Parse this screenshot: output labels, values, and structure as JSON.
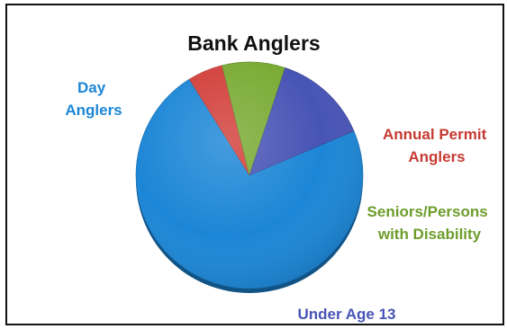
{
  "chart_data": {
    "type": "pie",
    "title": "Bank Anglers",
    "slices": [
      {
        "label": "Day Anglers",
        "value": 72.5,
        "color": "#1c86d6"
      },
      {
        "label": "Annual Permit Anglers",
        "value": 5,
        "color": "#d23f3a"
      },
      {
        "label": "Seniors/Persons with Disability",
        "value": 9,
        "color": "#79aa33"
      },
      {
        "label": "Under Age 13",
        "value": 13.5,
        "color": "#4854b5"
      }
    ]
  }
}
